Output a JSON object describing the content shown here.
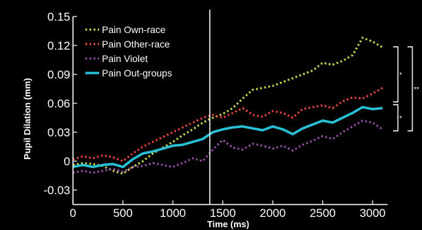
{
  "chart_data": {
    "type": "line",
    "title": "",
    "xlabel": "Time (ms)",
    "ylabel": "Pupil Dilation (mm)",
    "xlim": [
      0,
      3150
    ],
    "ylim": [
      -0.045,
      0.15
    ],
    "xticks": [
      0,
      500,
      1000,
      1500,
      2000,
      2500,
      3000
    ],
    "xtick_labels": [
      "0",
      "500",
      "1000",
      "1500",
      "2000",
      "2500",
      "3000"
    ],
    "yticks": [
      -0.03,
      0,
      0.03,
      0.06,
      0.09,
      0.12,
      0.15
    ],
    "ytick_labels": [
      "-0.03",
      "0",
      "0.03",
      "0.06",
      "0.09",
      "0.12",
      "0.15"
    ],
    "vline_x": 1370,
    "background": "#000000",
    "legend_position": "top-left",
    "significance": [
      {
        "label": "*",
        "from": 0.06,
        "to": 0.12
      },
      {
        "label": "*",
        "from": 0.03,
        "to": 0.06
      },
      {
        "label": "**",
        "from": 0.03,
        "to": 0.12
      }
    ],
    "series": [
      {
        "name": "Pain Own-race",
        "color": "#c8dc4a",
        "style": "dotted",
        "x": [
          0,
          100,
          200,
          300,
          400,
          500,
          600,
          700,
          800,
          900,
          1000,
          1100,
          1200,
          1300,
          1400,
          1500,
          1600,
          1700,
          1800,
          1900,
          2000,
          2100,
          2200,
          2300,
          2400,
          2500,
          2600,
          2700,
          2800,
          2900,
          3000,
          3100
        ],
        "values": [
          -0.004,
          -0.002,
          -0.003,
          -0.005,
          -0.01,
          -0.013,
          -0.006,
          0.0,
          0.008,
          0.014,
          0.02,
          0.027,
          0.033,
          0.04,
          0.045,
          0.049,
          0.055,
          0.065,
          0.074,
          0.076,
          0.078,
          0.082,
          0.086,
          0.09,
          0.094,
          0.102,
          0.1,
          0.104,
          0.11,
          0.128,
          0.124,
          0.118
        ]
      },
      {
        "name": "Pain Other-race",
        "color": "#e8433e",
        "style": "dotted",
        "x": [
          0,
          100,
          200,
          300,
          400,
          500,
          600,
          700,
          800,
          900,
          1000,
          1100,
          1200,
          1300,
          1400,
          1500,
          1600,
          1700,
          1800,
          1900,
          2000,
          2100,
          2200,
          2300,
          2400,
          2500,
          2600,
          2700,
          2800,
          2900,
          3000,
          3100
        ],
        "values": [
          0.002,
          0.005,
          0.003,
          0.006,
          0.004,
          0.0,
          0.008,
          0.015,
          0.02,
          0.025,
          0.03,
          0.035,
          0.04,
          0.045,
          0.048,
          0.045,
          0.05,
          0.055,
          0.048,
          0.046,
          0.052,
          0.05,
          0.045,
          0.054,
          0.056,
          0.058,
          0.055,
          0.062,
          0.066,
          0.065,
          0.07,
          0.076
        ]
      },
      {
        "name": "Pain Violet",
        "color": "#9b4fa8",
        "style": "dotted",
        "x": [
          0,
          100,
          200,
          300,
          400,
          500,
          600,
          700,
          800,
          900,
          1000,
          1100,
          1200,
          1300,
          1400,
          1500,
          1600,
          1700,
          1800,
          1900,
          2000,
          2100,
          2200,
          2300,
          2400,
          2500,
          2600,
          2700,
          2800,
          2900,
          3000,
          3100
        ],
        "values": [
          -0.012,
          -0.01,
          -0.012,
          -0.01,
          -0.008,
          -0.011,
          -0.006,
          -0.005,
          -0.002,
          -0.004,
          -0.006,
          -0.002,
          0.003,
          0.0,
          0.012,
          0.022,
          0.014,
          0.012,
          0.018,
          0.016,
          0.013,
          0.016,
          0.011,
          0.017,
          0.021,
          0.026,
          0.023,
          0.03,
          0.036,
          0.042,
          0.04,
          0.033
        ]
      },
      {
        "name": "Pain Out-groups",
        "color": "#27c0d6",
        "style": "solid",
        "x": [
          0,
          100,
          200,
          300,
          400,
          500,
          600,
          700,
          800,
          900,
          1000,
          1100,
          1200,
          1300,
          1400,
          1500,
          1600,
          1700,
          1800,
          1900,
          2000,
          2100,
          2200,
          2300,
          2400,
          2500,
          2600,
          2700,
          2800,
          2900,
          3000,
          3100
        ],
        "values": [
          -0.006,
          -0.004,
          -0.006,
          -0.004,
          -0.003,
          -0.006,
          0.002,
          0.008,
          0.01,
          0.013,
          0.016,
          0.017,
          0.02,
          0.023,
          0.03,
          0.033,
          0.035,
          0.036,
          0.034,
          0.032,
          0.036,
          0.033,
          0.028,
          0.034,
          0.038,
          0.042,
          0.04,
          0.045,
          0.05,
          0.056,
          0.054,
          0.055
        ]
      }
    ]
  }
}
